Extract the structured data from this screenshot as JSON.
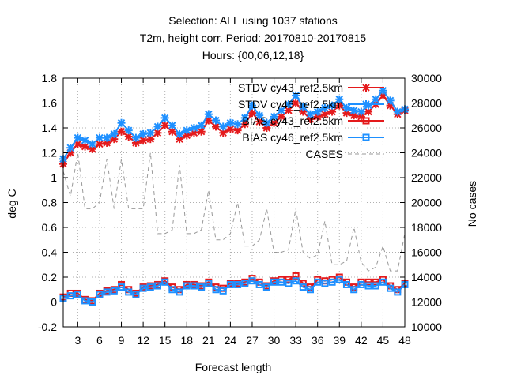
{
  "title_lines": [
    "Selection: ALL using  1037 stations",
    "T2m, height corr.   Period: 20170810-20170815",
    "Hours: {00,06,12,18}"
  ],
  "chart_data": {
    "type": "line",
    "xlabel": "Forecast length",
    "ylabel": "deg C",
    "y2label": "No cases",
    "xlim": [
      1,
      48
    ],
    "ylim": [
      -0.2,
      1.8
    ],
    "y2lim": [
      10000,
      30000
    ],
    "xticks": [
      3,
      6,
      9,
      12,
      15,
      18,
      21,
      24,
      27,
      30,
      33,
      36,
      39,
      42,
      45,
      48
    ],
    "yticks": [
      -0.2,
      0,
      0.2,
      0.4,
      0.6,
      0.8,
      1,
      1.2,
      1.4,
      1.6,
      1.8
    ],
    "y2ticks": [
      10000,
      12000,
      14000,
      16000,
      18000,
      20000,
      22000,
      24000,
      26000,
      28000,
      30000
    ],
    "grid": true,
    "legend_position": "top-right",
    "x": [
      1,
      2,
      3,
      4,
      5,
      6,
      7,
      8,
      9,
      10,
      11,
      12,
      13,
      14,
      15,
      16,
      17,
      18,
      19,
      20,
      21,
      22,
      23,
      24,
      25,
      26,
      27,
      28,
      29,
      30,
      31,
      32,
      33,
      34,
      35,
      36,
      37,
      38,
      39,
      40,
      41,
      42,
      43,
      44,
      45,
      46,
      47,
      48
    ],
    "series": [
      {
        "name": "STDV cy43_ref2.5km",
        "color": "#e41a1c",
        "marker": "x",
        "axis": "y1",
        "values": [
          1.11,
          1.2,
          1.27,
          1.25,
          1.23,
          1.27,
          1.28,
          1.31,
          1.37,
          1.33,
          1.28,
          1.3,
          1.31,
          1.36,
          1.42,
          1.37,
          1.31,
          1.34,
          1.36,
          1.37,
          1.46,
          1.41,
          1.36,
          1.39,
          1.38,
          1.43,
          1.52,
          1.45,
          1.4,
          1.44,
          1.49,
          1.54,
          1.6,
          1.53,
          1.47,
          1.49,
          1.51,
          1.53,
          1.58,
          1.52,
          1.5,
          1.49,
          1.53,
          1.59,
          1.66,
          1.58,
          1.51,
          1.54
        ]
      },
      {
        "name": "STDV cy46_ref2.5km",
        "color": "#1e90ff",
        "marker": "x",
        "axis": "y1",
        "values": [
          1.15,
          1.24,
          1.32,
          1.3,
          1.27,
          1.32,
          1.32,
          1.35,
          1.44,
          1.38,
          1.32,
          1.35,
          1.36,
          1.41,
          1.48,
          1.42,
          1.35,
          1.38,
          1.4,
          1.42,
          1.51,
          1.46,
          1.41,
          1.44,
          1.43,
          1.48,
          1.58,
          1.5,
          1.44,
          1.49,
          1.54,
          1.59,
          1.66,
          1.57,
          1.51,
          1.53,
          1.56,
          1.58,
          1.63,
          1.56,
          1.54,
          1.53,
          1.58,
          1.63,
          1.7,
          1.62,
          1.53,
          1.55
        ]
      },
      {
        "name": "BIAS cy43_ref2.5km",
        "color": "#e41a1c",
        "marker": "square",
        "axis": "y1",
        "values": [
          0.04,
          0.07,
          0.07,
          0.02,
          0.01,
          0.07,
          0.09,
          0.1,
          0.14,
          0.1,
          0.07,
          0.12,
          0.13,
          0.14,
          0.17,
          0.12,
          0.1,
          0.14,
          0.14,
          0.13,
          0.16,
          0.12,
          0.11,
          0.15,
          0.15,
          0.16,
          0.19,
          0.16,
          0.13,
          0.17,
          0.18,
          0.18,
          0.21,
          0.15,
          0.12,
          0.18,
          0.17,
          0.18,
          0.2,
          0.16,
          0.12,
          0.16,
          0.16,
          0.16,
          0.18,
          0.13,
          0.1,
          0.15
        ]
      },
      {
        "name": "BIAS cy46_ref2.5km",
        "color": "#1e90ff",
        "marker": "square",
        "axis": "y1",
        "values": [
          0.03,
          0.05,
          0.06,
          0.01,
          0.0,
          0.06,
          0.08,
          0.09,
          0.12,
          0.08,
          0.06,
          0.11,
          0.12,
          0.13,
          0.16,
          0.1,
          0.08,
          0.13,
          0.13,
          0.12,
          0.15,
          0.1,
          0.09,
          0.14,
          0.14,
          0.15,
          0.17,
          0.14,
          0.12,
          0.16,
          0.16,
          0.15,
          0.17,
          0.12,
          0.1,
          0.16,
          0.15,
          0.16,
          0.18,
          0.14,
          0.1,
          0.14,
          0.13,
          0.13,
          0.16,
          0.11,
          0.08,
          0.14
        ]
      },
      {
        "name": "CASES",
        "color": "#999999",
        "marker": "none",
        "dashed": true,
        "axis": "y2",
        "values": [
          22500,
          20500,
          24000,
          19500,
          19500,
          20000,
          23500,
          19500,
          23500,
          19500,
          19500,
          19500,
          24000,
          17500,
          17500,
          17800,
          23000,
          17500,
          17500,
          17800,
          21000,
          17000,
          17000,
          17500,
          20000,
          16500,
          16500,
          17000,
          19500,
          16000,
          16000,
          16200,
          19500,
          16000,
          15500,
          15800,
          18500,
          15000,
          15000,
          15300,
          18000,
          15200,
          14500,
          14800,
          16500,
          14500,
          14500,
          17500
        ]
      }
    ]
  }
}
